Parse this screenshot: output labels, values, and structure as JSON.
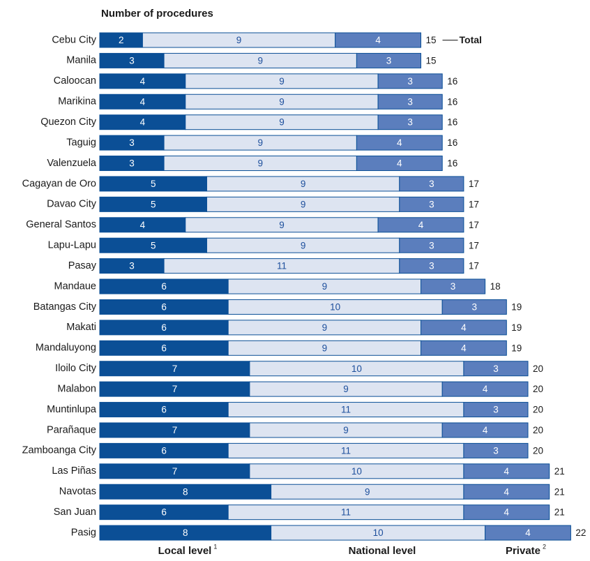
{
  "chart_data": {
    "type": "bar",
    "orientation": "horizontal",
    "stacked": true,
    "title": "Number of procedures",
    "categories": [
      "Cebu City",
      "Manila",
      "Caloocan",
      "Marikina",
      "Quezon City",
      "Taguig",
      "Valenzuela",
      "Cagayan de Oro",
      "Davao City",
      "General Santos",
      "Lapu-Lapu",
      "Pasay",
      "Mandaue",
      "Batangas City",
      "Makati",
      "Mandaluyong",
      "Iloilo City",
      "Malabon",
      "Muntinlupa",
      "Parañaque",
      "Zamboanga City",
      "Las Piñas",
      "Navotas",
      "San Juan",
      "Pasig"
    ],
    "series": [
      {
        "name": "Local level",
        "footnote": "1",
        "color": "#0b4f96",
        "text_color": "#ffffff",
        "values": [
          2,
          3,
          4,
          4,
          4,
          3,
          3,
          5,
          5,
          4,
          5,
          3,
          6,
          6,
          6,
          6,
          7,
          7,
          6,
          7,
          6,
          7,
          8,
          6,
          8
        ]
      },
      {
        "name": "National level",
        "color": "#dde4f1",
        "text_color": "#1d4f9c",
        "values": [
          9,
          9,
          9,
          9,
          9,
          9,
          9,
          9,
          9,
          9,
          9,
          11,
          9,
          10,
          9,
          9,
          10,
          9,
          11,
          9,
          11,
          10,
          9,
          11,
          10
        ]
      },
      {
        "name": "Private",
        "footnote": "2",
        "color": "#5b7ebd",
        "text_color": "#ffffff",
        "values": [
          4,
          3,
          3,
          3,
          3,
          4,
          4,
          3,
          3,
          4,
          3,
          3,
          3,
          3,
          4,
          4,
          3,
          4,
          3,
          4,
          3,
          4,
          4,
          4,
          4
        ]
      }
    ],
    "totals": [
      15,
      15,
      16,
      16,
      16,
      16,
      16,
      17,
      17,
      17,
      17,
      17,
      18,
      19,
      19,
      19,
      20,
      20,
      20,
      20,
      20,
      21,
      21,
      21,
      22
    ],
    "total_annotation": "Total"
  }
}
